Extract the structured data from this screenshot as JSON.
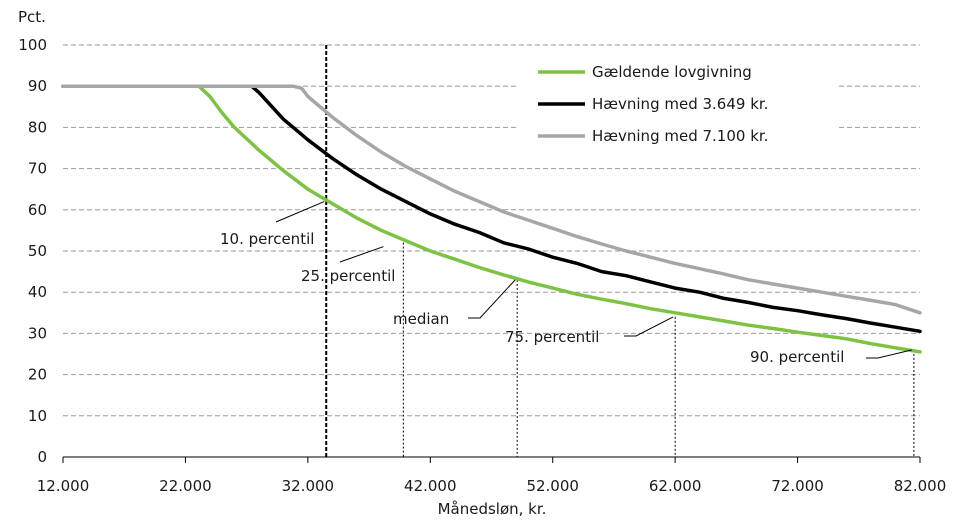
{
  "chart_data": {
    "type": "line",
    "ylabel": "Pct.",
    "xlabel": "Månedsløn, kr.",
    "xlim": [
      12000,
      82000
    ],
    "ylim": [
      0,
      100
    ],
    "x_tick_values": [
      12000,
      22000,
      32000,
      42000,
      52000,
      62000,
      72000,
      82000
    ],
    "x_tick_labels": [
      "12.000",
      "22.000",
      "32.000",
      "42.000",
      "52.000",
      "62.000",
      "72.000",
      "82.000"
    ],
    "y_ticks": [
      0,
      10,
      20,
      30,
      40,
      50,
      60,
      70,
      80,
      90,
      100
    ],
    "grid": "horizontal dashed",
    "legend_position": "top-right",
    "series": [
      {
        "name": "Gældende lovgivning",
        "color": "#7dc242",
        "x": [
          12000,
          23100,
          24000,
          25000,
          26000,
          28000,
          30000,
          32000,
          34000,
          36000,
          38000,
          40000,
          42000,
          44000,
          46000,
          48000,
          50000,
          52000,
          54000,
          56000,
          58000,
          60000,
          62000,
          64000,
          66000,
          68000,
          70000,
          72000,
          74000,
          76000,
          78000,
          80000,
          82000
        ],
        "values": [
          90,
          90,
          87.5,
          83.5,
          80,
          74.5,
          69.5,
          65,
          61.5,
          58,
          55,
          52.5,
          50,
          48,
          46,
          44.2,
          42.5,
          41,
          39.5,
          38.3,
          37.2,
          36,
          35,
          34,
          33,
          32,
          31.2,
          30.3,
          29.5,
          28.7,
          27.5,
          26.5,
          25.5
        ]
      },
      {
        "name": "Hævning med 3.649 kr.",
        "color": "#000000",
        "x": [
          12000,
          27400,
          28000,
          30000,
          32000,
          34000,
          36000,
          38000,
          40000,
          42000,
          44000,
          46000,
          48000,
          50000,
          52000,
          54000,
          56000,
          58000,
          60000,
          62000,
          64000,
          66000,
          68000,
          70000,
          72000,
          74000,
          76000,
          78000,
          80000,
          82000
        ],
        "values": [
          90,
          90,
          88.5,
          82,
          77,
          72.5,
          68.5,
          65,
          62,
          59,
          56.5,
          54.5,
          52,
          50.5,
          48.5,
          47,
          45,
          44,
          42.5,
          41,
          40,
          38.5,
          37.5,
          36.3,
          35.5,
          34.5,
          33.6,
          32.5,
          31.5,
          30.5
        ]
      },
      {
        "name": "Hævning med 7.100 kr.",
        "color": "#a6a6a6",
        "x": [
          12000,
          30800,
          31500,
          32000,
          34000,
          36000,
          38000,
          40000,
          42000,
          44000,
          46000,
          48000,
          50000,
          52000,
          54000,
          56000,
          58000,
          60000,
          62000,
          64000,
          66000,
          68000,
          70000,
          72000,
          74000,
          76000,
          78000,
          80000,
          82000
        ],
        "values": [
          90,
          90,
          89.5,
          87.5,
          82.5,
          78,
          74,
          70.5,
          67.5,
          64.5,
          62,
          59.5,
          57.5,
          55.5,
          53.5,
          51.7,
          50,
          48.5,
          47,
          45.7,
          44.4,
          43,
          42,
          41,
          40,
          39,
          38,
          37,
          35
        ]
      }
    ],
    "percentile_lines": [
      {
        "label": "10. percentil",
        "x": 33500,
        "y": 62,
        "style": "bold"
      },
      {
        "label": "25. percentil",
        "x": 39800,
        "y": 53,
        "style": "thin"
      },
      {
        "label": "median",
        "x": 49100,
        "y": 43,
        "style": "thin"
      },
      {
        "label": "75. percentil",
        "x": 62000,
        "y": 34,
        "style": "thin"
      },
      {
        "label": "90. percentil",
        "x": 81500,
        "y": 26,
        "style": "thin"
      }
    ]
  }
}
